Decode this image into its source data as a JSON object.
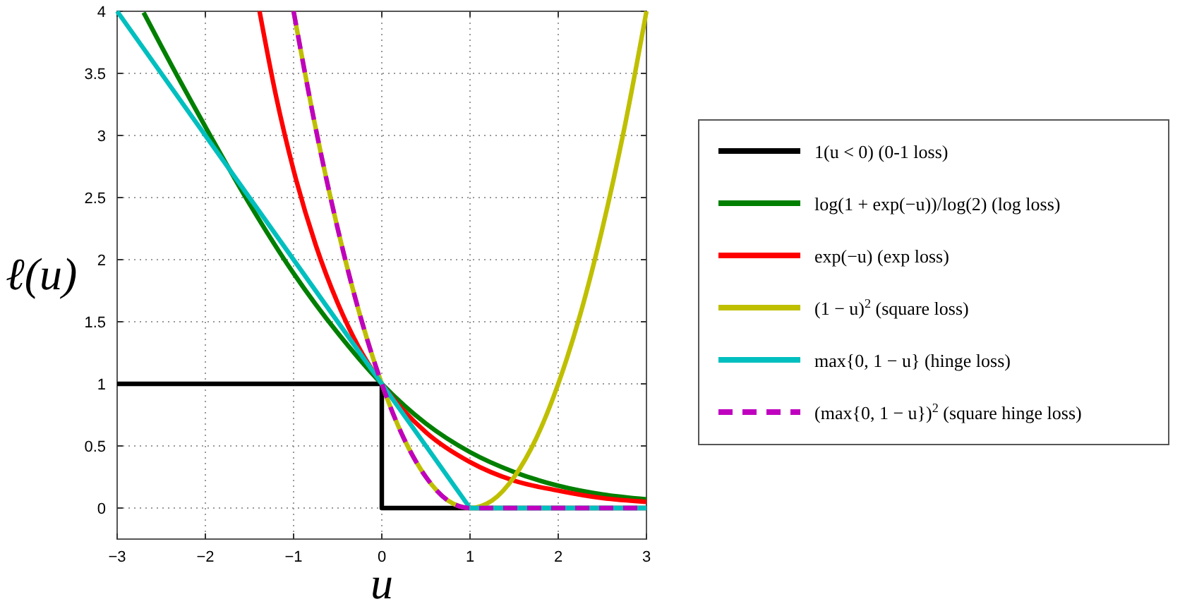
{
  "chart_data": {
    "type": "line",
    "xlabel": "u",
    "ylabel": "ℓ(u)",
    "xlim": [
      -3,
      3
    ],
    "ylim": [
      -0.25,
      4
    ],
    "xticks": [
      {
        "value": -3,
        "label": "−3"
      },
      {
        "value": -2,
        "label": "−2"
      },
      {
        "value": -1,
        "label": "−1"
      },
      0,
      1,
      2,
      3
    ],
    "yticks": [
      0,
      0.5,
      1,
      1.5,
      2,
      2.5,
      3,
      3.5,
      4
    ],
    "grid": true,
    "legend": "right",
    "line_style": "solid",
    "marker": "none",
    "series": [
      {
        "name": "1(u < 0)  (0-1 loss)",
        "color": "#000000",
        "x": [
          -3,
          0,
          0,
          3
        ],
        "values": [
          1,
          1,
          0,
          0
        ]
      },
      {
        "name": "log(1 + exp(−u))/log(2) (log loss)",
        "color": "#007f00",
        "x": [
          -2.7,
          -2.5,
          -2,
          -1.5,
          -1,
          -0.5,
          0,
          0.5,
          1,
          1.5,
          2,
          2.5,
          3
        ],
        "values": [
          3.99,
          3.72,
          3.07,
          2.45,
          1.89,
          1.41,
          1,
          0.68,
          0.45,
          0.29,
          0.18,
          0.11,
          0.07
        ]
      },
      {
        "name": "exp(−u)  (exp loss)",
        "color": "#ff0000",
        "x": [
          -1.386,
          -1.2,
          -1,
          -0.75,
          -0.5,
          -0.25,
          0,
          0.5,
          1,
          1.5,
          2,
          2.5,
          3
        ],
        "values": [
          4,
          3.32,
          2.72,
          2.12,
          1.65,
          1.28,
          1,
          0.61,
          0.37,
          0.22,
          0.14,
          0.08,
          0.05
        ]
      },
      {
        "name": "(1 − u)$^{2}$  (square loss)",
        "color": "#bfbf00",
        "x": [
          -1,
          -0.75,
          -0.5,
          -0.25,
          0,
          0.25,
          0.5,
          0.75,
          1,
          1.25,
          1.5,
          1.75,
          2,
          2.25,
          2.5,
          2.75,
          3
        ],
        "values": [
          4,
          3.06,
          2.25,
          1.56,
          1,
          0.56,
          0.25,
          0.06,
          0,
          0.06,
          0.25,
          0.56,
          1,
          1.56,
          2.25,
          3.06,
          4
        ]
      },
      {
        "name": "max{0, 1 − u}  (hinge loss)",
        "color": "#00bfbf",
        "x": [
          -3,
          1,
          3
        ],
        "values": [
          4,
          0,
          0
        ]
      },
      {
        "name": "(max{0, 1 − u})$^{2}$  (square hinge loss)",
        "color": "#bf00bf",
        "line_style": "dashed",
        "x": [
          -1,
          -0.75,
          -0.5,
          -0.25,
          0,
          0.25,
          0.5,
          0.75,
          1,
          3
        ],
        "values": [
          4,
          3.06,
          2.25,
          1.56,
          1,
          0.56,
          0.25,
          0.06,
          0,
          0
        ]
      }
    ]
  }
}
